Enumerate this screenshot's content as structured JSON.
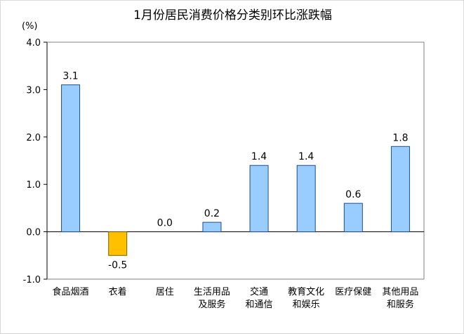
{
  "chart_data": {
    "type": "bar",
    "title": "1月份居民消费价格分类别环比涨跌幅",
    "y_unit_label": "(%)",
    "ylim": [
      -1.0,
      4.0
    ],
    "yticks": [
      "-1.0",
      "0.0",
      "1.0",
      "2.0",
      "3.0",
      "4.0"
    ],
    "grid": false,
    "categories": [
      [
        "食品烟酒"
      ],
      [
        "衣着"
      ],
      [
        "居住"
      ],
      [
        "生活用品",
        "及服务"
      ],
      [
        "交通",
        "和通信"
      ],
      [
        "教育文化",
        "和娱乐"
      ],
      [
        "医疗保健"
      ],
      [
        "其他用品",
        "和服务"
      ]
    ],
    "values": [
      3.1,
      -0.5,
      0.0,
      0.2,
      1.4,
      1.4,
      0.6,
      1.8
    ],
    "value_labels": [
      "3.1",
      "-0.5",
      "0.0",
      "0.2",
      "1.4",
      "1.4",
      "0.6",
      "1.8"
    ],
    "colors": {
      "positive_fill": "#99ccff",
      "positive_stroke": "#1f4e8c",
      "negative_fill": "#ffc000",
      "negative_stroke": "#7f6000",
      "axis": "#000000"
    }
  }
}
